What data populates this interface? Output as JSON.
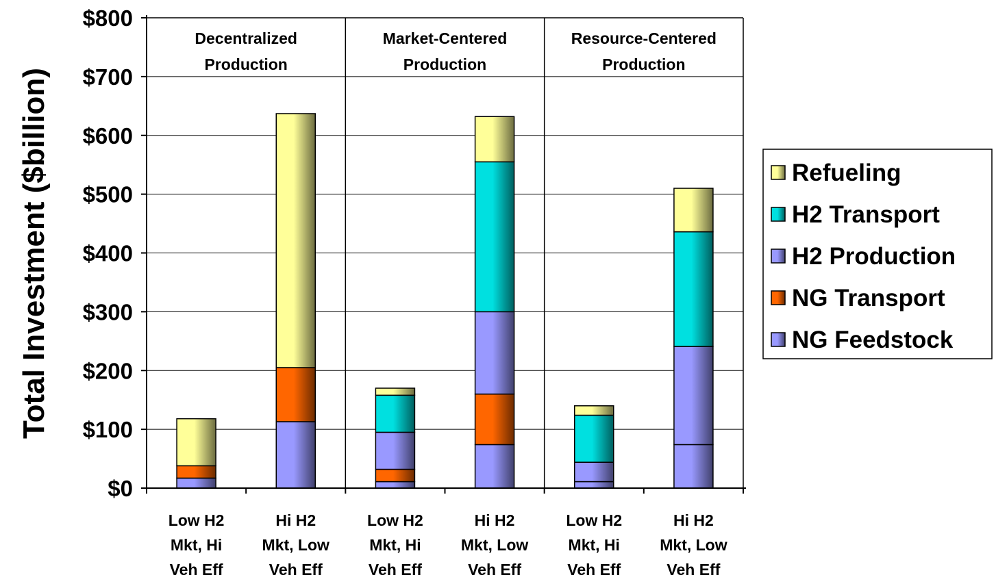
{
  "chart_data": {
    "type": "bar",
    "stacked": true,
    "ylabel": "Total Investment ($billion)",
    "xlabel": "",
    "ylim": [
      0,
      800
    ],
    "y_ticks": [
      "$0",
      "$100",
      "$200",
      "$300",
      "$400",
      "$500",
      "$600",
      "$700",
      "$800"
    ],
    "y_tick_values": [
      0,
      100,
      200,
      300,
      400,
      500,
      600,
      700,
      800
    ],
    "grid": true,
    "legend_position": "right",
    "groups": [
      {
        "label": [
          "Decentralized",
          "Production"
        ],
        "categories": [
          0,
          1
        ]
      },
      {
        "label": [
          "Market-Centered",
          "Production"
        ],
        "categories": [
          2,
          3
        ]
      },
      {
        "label": [
          "Resource-Centered",
          "Production"
        ],
        "categories": [
          4,
          5
        ]
      }
    ],
    "categories": [
      [
        "Low H2",
        "Mkt, Hi",
        "Veh Eff"
      ],
      [
        "Hi H2",
        "Mkt, Low",
        "Veh Eff"
      ],
      [
        "Low H2",
        "Mkt, Hi",
        "Veh Eff"
      ],
      [
        "Hi H2",
        "Mkt, Low",
        "Veh Eff"
      ],
      [
        "Low H2",
        "Mkt, Hi",
        "Veh Eff"
      ],
      [
        "Hi H2",
        "Mkt, Low",
        "Veh Eff"
      ]
    ],
    "series": [
      {
        "name": "NG Feedstock",
        "color": "#9999ff",
        "values": [
          17,
          113,
          11,
          74,
          11,
          74
        ]
      },
      {
        "name": "NG Transport",
        "color": "#ff6600",
        "values": [
          21,
          92,
          21,
          86,
          0,
          0
        ]
      },
      {
        "name": "H2 Production",
        "color": "#9999ff",
        "values": [
          0,
          0,
          63,
          140,
          33,
          167
        ]
      },
      {
        "name": "H2 Transport",
        "color": "#00e0e0",
        "values": [
          0,
          0,
          63,
          255,
          80,
          195
        ]
      },
      {
        "name": "Refueling",
        "color": "#ffff99",
        "values": [
          80,
          432,
          12,
          77,
          16,
          74
        ]
      }
    ],
    "legend_order": [
      "Refueling",
      "H2 Transport",
      "H2 Production",
      "NG Transport",
      "NG Feedstock"
    ]
  }
}
